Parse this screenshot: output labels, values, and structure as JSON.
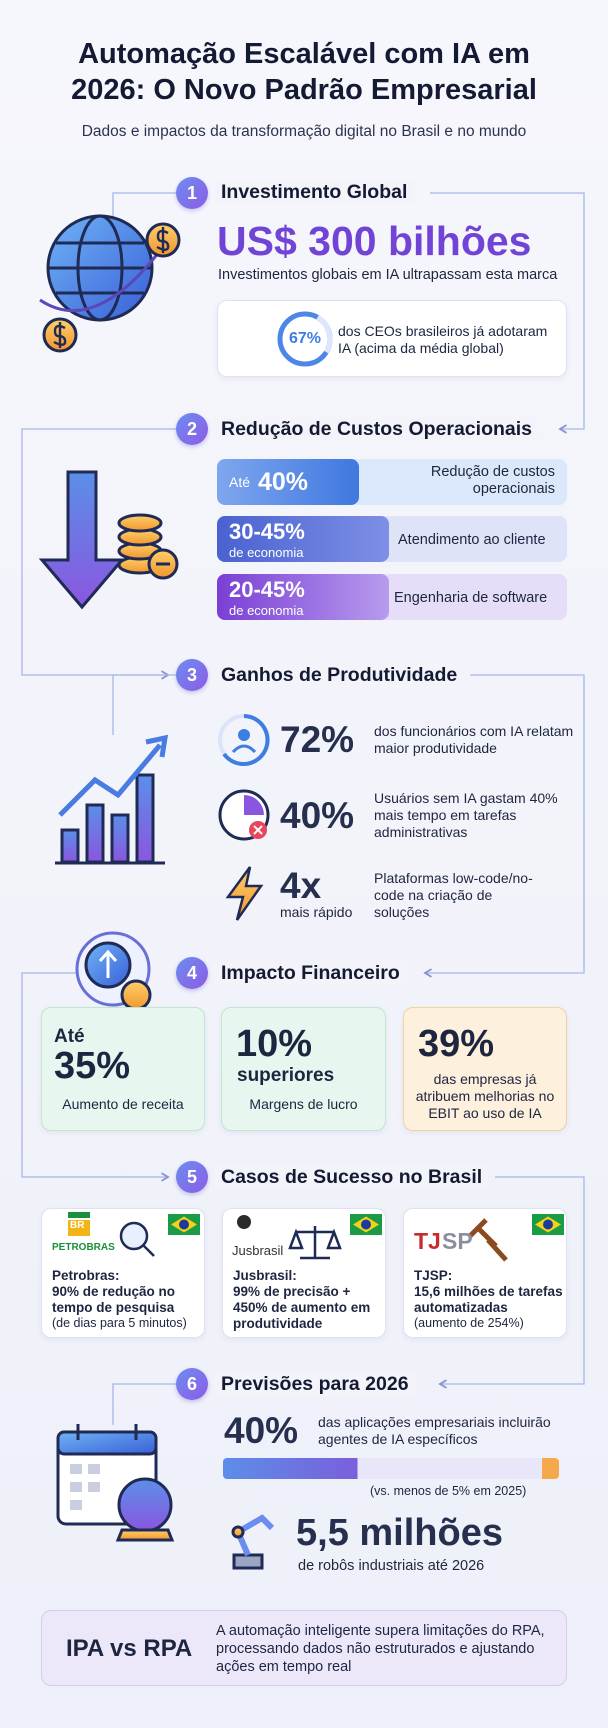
{
  "header": {
    "title_line1": "Automação Escalável com IA em",
    "title_line2": "2026: O Novo Padrão Empresarial",
    "subtitle": "Dados e impactos da transformação digital no Brasil e no mundo"
  },
  "section1": {
    "number": "1",
    "title": "Investimento Global",
    "headline": "US$ 300 bilhões",
    "description": "Investimentos globais em IA ultrapassam esta marca",
    "highlight_value": "67%",
    "highlight_text": "dos CEOs brasileiros já adotaram IA (acima da média global)"
  },
  "section2": {
    "number": "2",
    "title": "Redução de Custos Operacionais",
    "items": [
      {
        "prefix": "Até",
        "value": "40%",
        "text": "Redução de custos operacionais"
      },
      {
        "value": "30-45%",
        "suffix": "de economia",
        "text": "Atendimento ao cliente"
      },
      {
        "value": "20-45%",
        "suffix": "de economia",
        "text": "Engenharia de software"
      }
    ]
  },
  "section3": {
    "number": "3",
    "title": "Ganhos de Produtividade",
    "items": [
      {
        "value": "72%",
        "text": "dos funcionários com IA relatam maior produtividade"
      },
      {
        "value": "40%",
        "text": "Usuários sem IA gastam 40% mais tempo em tarefas administrativas"
      },
      {
        "value": "4x",
        "suffix": "mais rápido",
        "text": "Plataformas low-code/no-code na criação de soluções"
      }
    ]
  },
  "section4": {
    "number": "4",
    "title": "Impacto Financeiro",
    "cards": [
      {
        "prefix": "Até",
        "value": "35%",
        "text": "Aumento de receita"
      },
      {
        "value": "10%",
        "suffix": "superiores",
        "text": "Margens de lucro"
      },
      {
        "value": "39%",
        "text": "das empresas já atribuem melhorias no EBIT ao uso de IA"
      }
    ]
  },
  "section5": {
    "number": "5",
    "title": "Casos de Sucesso no Brasil",
    "cards": [
      {
        "badge": "BR",
        "logo": "PETROBRAS",
        "name": "Petrobras:",
        "result": "90% de redução no tempo de pesquisa",
        "note": "(de dias para 5 minutos)"
      },
      {
        "logo": "Jusbrasil",
        "name": "Jusbrasil:",
        "result": "99% de precisão + 450% de aumento em produtividade"
      },
      {
        "logo_part1": "TJ",
        "logo_part2": "SP",
        "name": "TJSP:",
        "result": "15,6 milhões de tarefas automatizadas",
        "note": "(aumento de 254%)"
      }
    ]
  },
  "section6": {
    "number": "6",
    "title": "Previsões para 2026",
    "value": "40%",
    "text": "das aplicações empresariais incluirão agentes de IA específicos",
    "note": "(vs. menos de 5% em 2025)",
    "robots_value": "5,5 milhões",
    "robots_text": "de robôs industriais até 2026"
  },
  "footer": {
    "title": "IPA vs RPA",
    "text": "A automação inteligente supera limitações do RPA, processando dados não estruturados e ajustando ações em tempo real"
  }
}
